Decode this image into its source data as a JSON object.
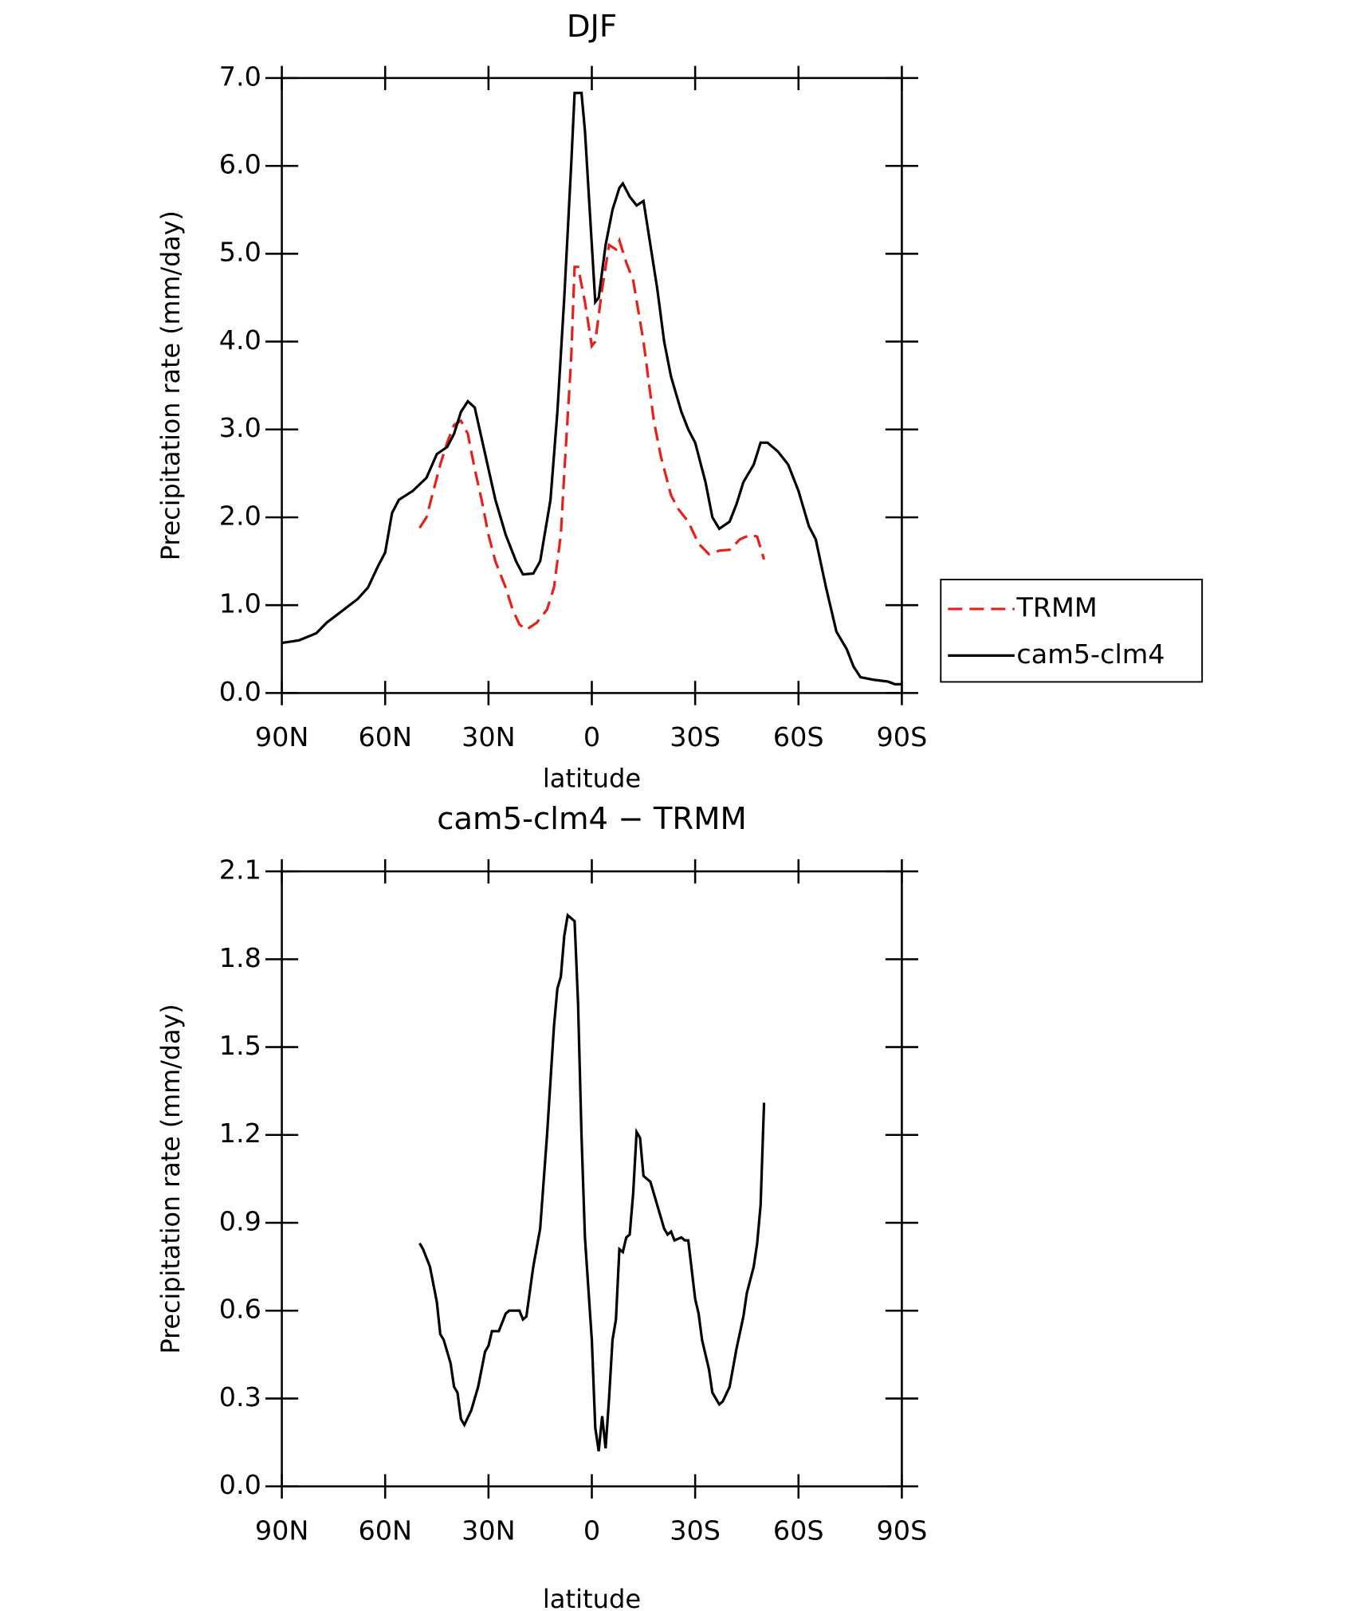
{
  "chart_data": [
    {
      "type": "line",
      "title": "DJF",
      "xlabel": "latitude",
      "ylabel": "Precipitation rate (mm/day)",
      "xlim": [
        90,
        -90
      ],
      "xticks": [
        {
          "value": 90,
          "label": "90N"
        },
        {
          "value": 60,
          "label": "60N"
        },
        {
          "value": 30,
          "label": "30N"
        },
        0,
        {
          "value": -30,
          "label": "30S"
        },
        {
          "value": -60,
          "label": "60S"
        },
        {
          "value": -90,
          "label": "90S"
        }
      ],
      "ylim": [
        0,
        7
      ],
      "yticks": [
        {
          "value": 0,
          "label": "0.0"
        },
        {
          "value": 1,
          "label": "1.0"
        },
        {
          "value": 2,
          "label": "2.0"
        },
        {
          "value": 3,
          "label": "3.0"
        },
        {
          "value": 4,
          "label": "4.0"
        },
        {
          "value": 5,
          "label": "5.0"
        },
        {
          "value": 6,
          "label": "6.0"
        },
        {
          "value": 7,
          "label": "7.0"
        }
      ],
      "legend": "outside-right",
      "series": [
        {
          "name": "TRMM",
          "color": "#e8201a",
          "linestyle": "dashed",
          "x": [
            50,
            48,
            46,
            44,
            42,
            40,
            38,
            36,
            34,
            32,
            30,
            28,
            25,
            23,
            21,
            19,
            16,
            13,
            11,
            9,
            8,
            6,
            5,
            4,
            2,
            0,
            -1,
            -3,
            -5,
            -7,
            -8,
            -10,
            -12,
            -15,
            -18,
            -20,
            -23,
            -25,
            -28,
            -31,
            -34,
            -37,
            -40,
            -43,
            -46,
            -48,
            -50
          ],
          "values": [
            1.88,
            2.0,
            2.3,
            2.6,
            2.85,
            3.05,
            3.1,
            2.95,
            2.55,
            2.2,
            1.8,
            1.5,
            1.2,
            0.95,
            0.78,
            0.72,
            0.8,
            0.95,
            1.2,
            1.8,
            2.5,
            3.8,
            4.85,
            4.85,
            4.45,
            3.95,
            4.0,
            4.6,
            5.1,
            5.05,
            5.15,
            4.9,
            4.7,
            4.0,
            3.1,
            2.7,
            2.25,
            2.1,
            1.95,
            1.7,
            1.58,
            1.62,
            1.63,
            1.75,
            1.8,
            1.78,
            1.52
          ]
        },
        {
          "name": "cam5-clm4",
          "color": "#000000",
          "linestyle": "solid",
          "x": [
            90,
            85,
            80,
            77,
            72,
            68,
            65,
            62,
            60,
            58,
            56,
            52,
            48,
            45,
            42,
            40,
            38,
            36,
            34,
            32,
            30,
            28,
            25,
            22,
            20,
            17,
            15,
            12,
            10,
            8,
            6,
            5,
            3,
            2,
            0,
            -1,
            -2,
            -4,
            -6,
            -8,
            -9,
            -11,
            -13,
            -15,
            -17,
            -19,
            -21,
            -23,
            -26,
            -28,
            -30,
            -33,
            -35,
            -37,
            -40,
            -42,
            -44,
            -47,
            -49,
            -51,
            -54,
            -57,
            -60,
            -63,
            -65,
            -68,
            -71,
            -74,
            -76,
            -78,
            -82,
            -86,
            -88,
            -90
          ],
          "values": [
            0.57,
            0.6,
            0.68,
            0.8,
            0.95,
            1.07,
            1.2,
            1.45,
            1.6,
            2.05,
            2.2,
            2.3,
            2.45,
            2.72,
            2.8,
            2.95,
            3.2,
            3.32,
            3.25,
            2.9,
            2.55,
            2.2,
            1.8,
            1.5,
            1.35,
            1.36,
            1.5,
            2.2,
            3.2,
            4.5,
            6.0,
            6.83,
            6.83,
            6.4,
            5.1,
            4.45,
            4.5,
            5.1,
            5.5,
            5.75,
            5.8,
            5.65,
            5.55,
            5.6,
            5.1,
            4.6,
            4.0,
            3.6,
            3.2,
            3.0,
            2.85,
            2.4,
            2.0,
            1.87,
            1.95,
            2.15,
            2.4,
            2.6,
            2.85,
            2.85,
            2.75,
            2.6,
            2.3,
            1.9,
            1.75,
            1.2,
            0.7,
            0.5,
            0.3,
            0.18,
            0.15,
            0.13,
            0.1,
            0.1
          ]
        }
      ]
    },
    {
      "type": "line",
      "title": "cam5-clm4 − TRMM",
      "xlabel": "latitude",
      "ylabel": "Precipitation rate (mm/day)",
      "xlim": [
        90,
        -90
      ],
      "xticks": [
        {
          "value": 90,
          "label": "90N"
        },
        {
          "value": 60,
          "label": "60N"
        },
        {
          "value": 30,
          "label": "30N"
        },
        0,
        {
          "value": -30,
          "label": "30S"
        },
        {
          "value": -60,
          "label": "60S"
        },
        {
          "value": -90,
          "label": "90S"
        }
      ],
      "ylim": [
        0,
        2.1
      ],
      "yticks": [
        {
          "value": 0,
          "label": "0.0"
        },
        0.3,
        0.6,
        0.9,
        1.2,
        1.5,
        1.8,
        2.1
      ],
      "series": [
        {
          "color": "#000000",
          "linestyle": "solid",
          "x": [
            50,
            49,
            47,
            45,
            44,
            43,
            41,
            40,
            39,
            38,
            37,
            35,
            33,
            31,
            30,
            29,
            27,
            25,
            24,
            21,
            20,
            19,
            17,
            15,
            13,
            11,
            10,
            9,
            8,
            7,
            5,
            4,
            3,
            2,
            0,
            -1,
            -2,
            -3,
            -4,
            -5,
            -6,
            -7,
            -8,
            -9,
            -10,
            -11,
            -12,
            -13,
            -14,
            -15,
            -17,
            -19,
            -21,
            -22,
            -23,
            -24,
            -26,
            -27,
            -28,
            -30,
            -31,
            -32,
            -34,
            -35,
            -37,
            -38,
            -40,
            -42,
            -44,
            -45,
            -47,
            -48,
            -49,
            -50
          ],
          "values": [
            0.83,
            0.81,
            0.75,
            0.63,
            0.52,
            0.5,
            0.42,
            0.34,
            0.32,
            0.23,
            0.21,
            0.26,
            0.34,
            0.46,
            0.48,
            0.53,
            0.53,
            0.59,
            0.6,
            0.6,
            0.57,
            0.58,
            0.75,
            0.88,
            1.2,
            1.57,
            1.7,
            1.74,
            1.88,
            1.95,
            1.93,
            1.65,
            1.2,
            0.85,
            0.5,
            0.2,
            0.12,
            0.24,
            0.13,
            0.3,
            0.5,
            0.57,
            0.81,
            0.8,
            0.85,
            0.86,
            1.0,
            1.21,
            1.19,
            1.06,
            1.04,
            0.96,
            0.88,
            0.86,
            0.87,
            0.84,
            0.85,
            0.84,
            0.84,
            0.64,
            0.59,
            0.5,
            0.4,
            0.32,
            0.28,
            0.29,
            0.34,
            0.47,
            0.58,
            0.66,
            0.75,
            0.83,
            0.96,
            1.31
          ]
        }
      ]
    }
  ]
}
